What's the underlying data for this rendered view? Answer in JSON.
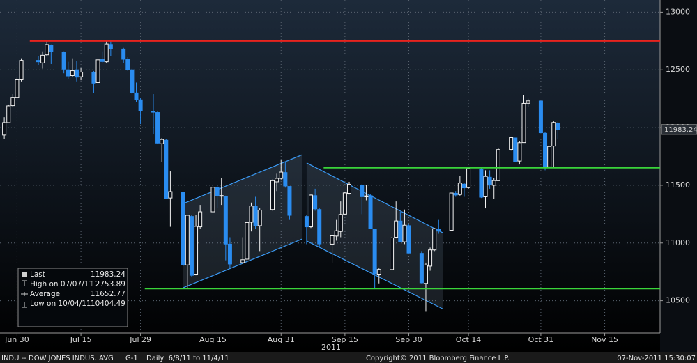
{
  "chart_data": {
    "type": "candlestick",
    "x": [
      "2011-06-27",
      "2011-06-28",
      "2011-06-29",
      "2011-06-30",
      "2011-07-01",
      "2011-07-05",
      "2011-07-06",
      "2011-07-07",
      "2011-07-08",
      "2011-07-11",
      "2011-07-12",
      "2011-07-13",
      "2011-07-14",
      "2011-07-15",
      "2011-07-18",
      "2011-07-19",
      "2011-07-20",
      "2011-07-21",
      "2011-07-22",
      "2011-07-25",
      "2011-07-26",
      "2011-07-27",
      "2011-07-28",
      "2011-07-29",
      "2011-08-01",
      "2011-08-02",
      "2011-08-03",
      "2011-08-04",
      "2011-08-05",
      "2011-08-08",
      "2011-08-09",
      "2011-08-10",
      "2011-08-11",
      "2011-08-12",
      "2011-08-15",
      "2011-08-16",
      "2011-08-17",
      "2011-08-18",
      "2011-08-19",
      "2011-08-22",
      "2011-08-23",
      "2011-08-24",
      "2011-08-25",
      "2011-08-26",
      "2011-08-29",
      "2011-08-30",
      "2011-08-31",
      "2011-09-01",
      "2011-09-02",
      "2011-09-06",
      "2011-09-07",
      "2011-09-08",
      "2011-09-09",
      "2011-09-12",
      "2011-09-13",
      "2011-09-14",
      "2011-09-15",
      "2011-09-16",
      "2011-09-19",
      "2011-09-20",
      "2011-09-21",
      "2011-09-22",
      "2011-09-23",
      "2011-09-26",
      "2011-09-27",
      "2011-09-28",
      "2011-09-29",
      "2011-09-30",
      "2011-10-03",
      "2011-10-04",
      "2011-10-05",
      "2011-10-06",
      "2011-10-07",
      "2011-10-10",
      "2011-10-11",
      "2011-10-12",
      "2011-10-13",
      "2011-10-14",
      "2011-10-17",
      "2011-10-18",
      "2011-10-19",
      "2011-10-20",
      "2011-10-21",
      "2011-10-24",
      "2011-10-25",
      "2011-10-26",
      "2011-10-27",
      "2011-10-28",
      "2011-10-31",
      "2011-11-01",
      "2011-11-02",
      "2011-11-03",
      "2011-11-04"
    ],
    "open": [
      11935,
      12043,
      12190,
      12262,
      12414,
      12582,
      12560,
      12630,
      12710,
      12650,
      12500,
      12450,
      12500,
      12440,
      12480,
      12390,
      12590,
      12570,
      12720,
      12680,
      12590,
      12500,
      12300,
      12240,
      12140,
      12130,
      11860,
      11890,
      11390,
      11440,
      10810,
      11230,
      10730,
      11140,
      11270,
      11480,
      11410,
      11400,
      10990,
      10830,
      10860,
      11180,
      11320,
      11150,
      11290,
      11530,
      11560,
      11610,
      11490,
      11230,
      11140,
      11410,
      11290,
      10990,
      11060,
      11100,
      11250,
      11430,
      11500,
      11400,
      11410,
      11120,
      10730,
      10770,
      11050,
      11190,
      11010,
      11150,
      10910,
      10650,
      10800,
      10940,
      11120,
      11110,
      11430,
      11420,
      11510,
      11480,
      11640,
      11400,
      11570,
      11500,
      11540,
      11810,
      11910,
      11710,
      11870,
      12210,
      12230,
      11950,
      11660,
      11840,
      12040
    ],
    "high": [
      12090,
      12200,
      12290,
      12440,
      12600,
      12620,
      12660,
      12753.89,
      12720,
      12660,
      12570,
      12600,
      12580,
      12520,
      12490,
      12600,
      12660,
      12750,
      12750,
      12690,
      12610,
      12510,
      12390,
      12260,
      12290,
      12140,
      11910,
      11900,
      11620,
      11440,
      11240,
      11240,
      11240,
      11330,
      11490,
      11500,
      11560,
      11410,
      11050,
      11050,
      11180,
      11350,
      11400,
      11300,
      11550,
      11600,
      11720,
      11700,
      11490,
      11240,
      11420,
      11470,
      11300,
      11070,
      11200,
      11360,
      11440,
      11530,
      11510,
      11500,
      11420,
      11120,
      10780,
      11050,
      11360,
      11270,
      11290,
      11160,
      10930,
      10830,
      10960,
      11130,
      11200,
      11430,
      11450,
      11580,
      11520,
      11650,
      11650,
      11630,
      11630,
      11560,
      11820,
      11920,
      11910,
      11880,
      12280,
      12250,
      12230,
      11960,
      11840,
      12060,
      12050
    ],
    "low": [
      11900,
      12040,
      12180,
      12260,
      12400,
      12540,
      12510,
      12620,
      12550,
      12470,
      12420,
      12440,
      12400,
      12410,
      12300,
      12385,
      12560,
      12560,
      12620,
      12560,
      12490,
      12290,
      12220,
      12030,
      11940,
      11860,
      11700,
      11380,
      11140,
      10800,
      10600,
      10710,
      10720,
      11120,
      11260,
      11300,
      11330,
      10850,
      10780,
      10820,
      10850,
      11100,
      11120,
      10930,
      11280,
      11450,
      11550,
      11480,
      11200,
      10990,
      11130,
      11280,
      10960,
      10830,
      11020,
      11050,
      11240,
      11420,
      11250,
      11370,
      11120,
      10600,
      10650,
      10770,
      11040,
      11010,
      10990,
      10910,
      10650,
      10404.49,
      10760,
      10930,
      11080,
      11110,
      11400,
      11410,
      11400,
      11470,
      11390,
      11300,
      11470,
      11380,
      11540,
      11800,
      11700,
      11680,
      11870,
      12180,
      11950,
      11630,
      11650,
      11660,
      11900
    ],
    "close": [
      12043,
      12188,
      12262,
      12414,
      12582,
      12570,
      12626,
      12719,
      12657,
      12506,
      12447,
      12492,
      12437,
      12480,
      12385,
      12587,
      12572,
      12724,
      12681,
      12592,
      12501,
      12303,
      12241,
      12143,
      12133,
      11866,
      11897,
      11384,
      11445,
      10810,
      11240,
      10720,
      11144,
      11270,
      11483,
      11406,
      11411,
      10991,
      10818,
      10855,
      11177,
      11320,
      11150,
      11285,
      11540,
      11560,
      11614,
      11494,
      11240,
      11140,
      11415,
      11296,
      10992,
      11062,
      11106,
      11247,
      11434,
      11509,
      11401,
      11408,
      11125,
      10734,
      10771,
      11044,
      11191,
      11011,
      11154,
      10913,
      10655,
      10809,
      10940,
      11124,
      11103,
      11433,
      11416,
      11519,
      11478,
      11644,
      11397,
      11577,
      11505,
      11541,
      11809,
      11913,
      11706,
      11869,
      12209,
      12231,
      11955,
      11657,
      11836,
      12044,
      11983.24
    ],
    "up_color": "#f2f2f2",
    "down_color": "#2a8cf0",
    "xlim": [
      "2011-06-26",
      "2011-11-28"
    ],
    "xticks": [
      {
        "value": "2011-06-30",
        "label": "Jun 30"
      },
      {
        "value": "2011-07-15",
        "label": "Jul 15"
      },
      {
        "value": "2011-07-29",
        "label": "Jul 29"
      },
      {
        "value": "2011-08-15",
        "label": "Aug 15"
      },
      {
        "value": "2011-08-31",
        "label": "Aug 31"
      },
      {
        "value": "2011-09-15",
        "label": "Sep 15"
      },
      {
        "value": "2011-09-30",
        "label": "Sep 30"
      },
      {
        "value": "2011-10-14",
        "label": "Oct 14"
      },
      {
        "value": "2011-10-31",
        "label": "Oct 31"
      },
      {
        "value": "2011-11-15",
        "label": "Nov 15"
      }
    ],
    "x_year_label": "2011",
    "ylim": [
      10220,
      13105
    ],
    "yticks": [
      10500,
      11000,
      11500,
      12000,
      12500,
      13000
    ],
    "grid": true,
    "hlines": [
      {
        "value": 12750,
        "from": "2011-07-03",
        "color": "#e8231e"
      },
      {
        "value": 11652,
        "from": "2011-09-10",
        "color": "#3ad43a"
      },
      {
        "value": 10605,
        "from": "2011-07-30",
        "color": "#3ad43a"
      }
    ],
    "channels": [
      {
        "x": [
          "2011-08-08",
          "2011-09-05"
        ],
        "upper": [
          11341,
          11765
        ],
        "lower": [
          10612,
          11035
        ]
      },
      {
        "x": [
          "2011-09-06",
          "2011-10-08"
        ],
        "upper": [
          11694,
          11088
        ],
        "lower": [
          11018,
          10429
        ]
      }
    ],
    "legend": [
      {
        "label": "Last",
        "value": 11983.24
      },
      {
        "label": "High on 07/07/11",
        "value": 12753.89
      },
      {
        "label": "Average",
        "value": 11652.77
      },
      {
        "label": "Low on 10/04/11",
        "value": 10404.49
      }
    ]
  },
  "footer": {
    "security": "INDU -- DOW JONES INDUS. AVG",
    "page": "G-1",
    "range": "Daily  6/8/11 to 11/4/11",
    "copyright": "Copyright© 2011 Bloomberg Finance L.P.",
    "timestamp": "07-Nov-2011 15:30:07"
  }
}
